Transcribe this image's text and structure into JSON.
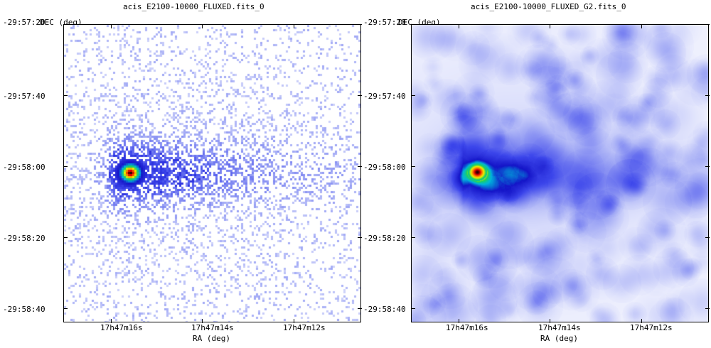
{
  "panels": [
    {
      "id": "raw",
      "title": "acis_E2100-10000_FLUXED.fits_0",
      "y_axis_label": "DEC (deg)",
      "x_axis_label": "RA (deg)",
      "y_ticks": [
        "-29:57:20",
        "-29:57:40",
        "-29:58:00",
        "-29:58:20",
        "-29:58:40"
      ],
      "x_ticks": [
        "17h47m16s",
        "17h47m14s",
        "17h47m12s"
      ],
      "style": "pixelated"
    },
    {
      "id": "smoothed",
      "title": "acis_E2100-10000_FLUXED_G2.fits_0",
      "y_axis_label": "DEC (deg)",
      "x_axis_label": "RA (deg)",
      "y_ticks": [
        "-29:57:20",
        "-29:57:40",
        "-29:58:00",
        "-29:58:20",
        "-29:58:40"
      ],
      "x_ticks": [
        "17h47m16s",
        "17h47m14s",
        "17h47m12s"
      ],
      "style": "smoothed"
    }
  ]
}
